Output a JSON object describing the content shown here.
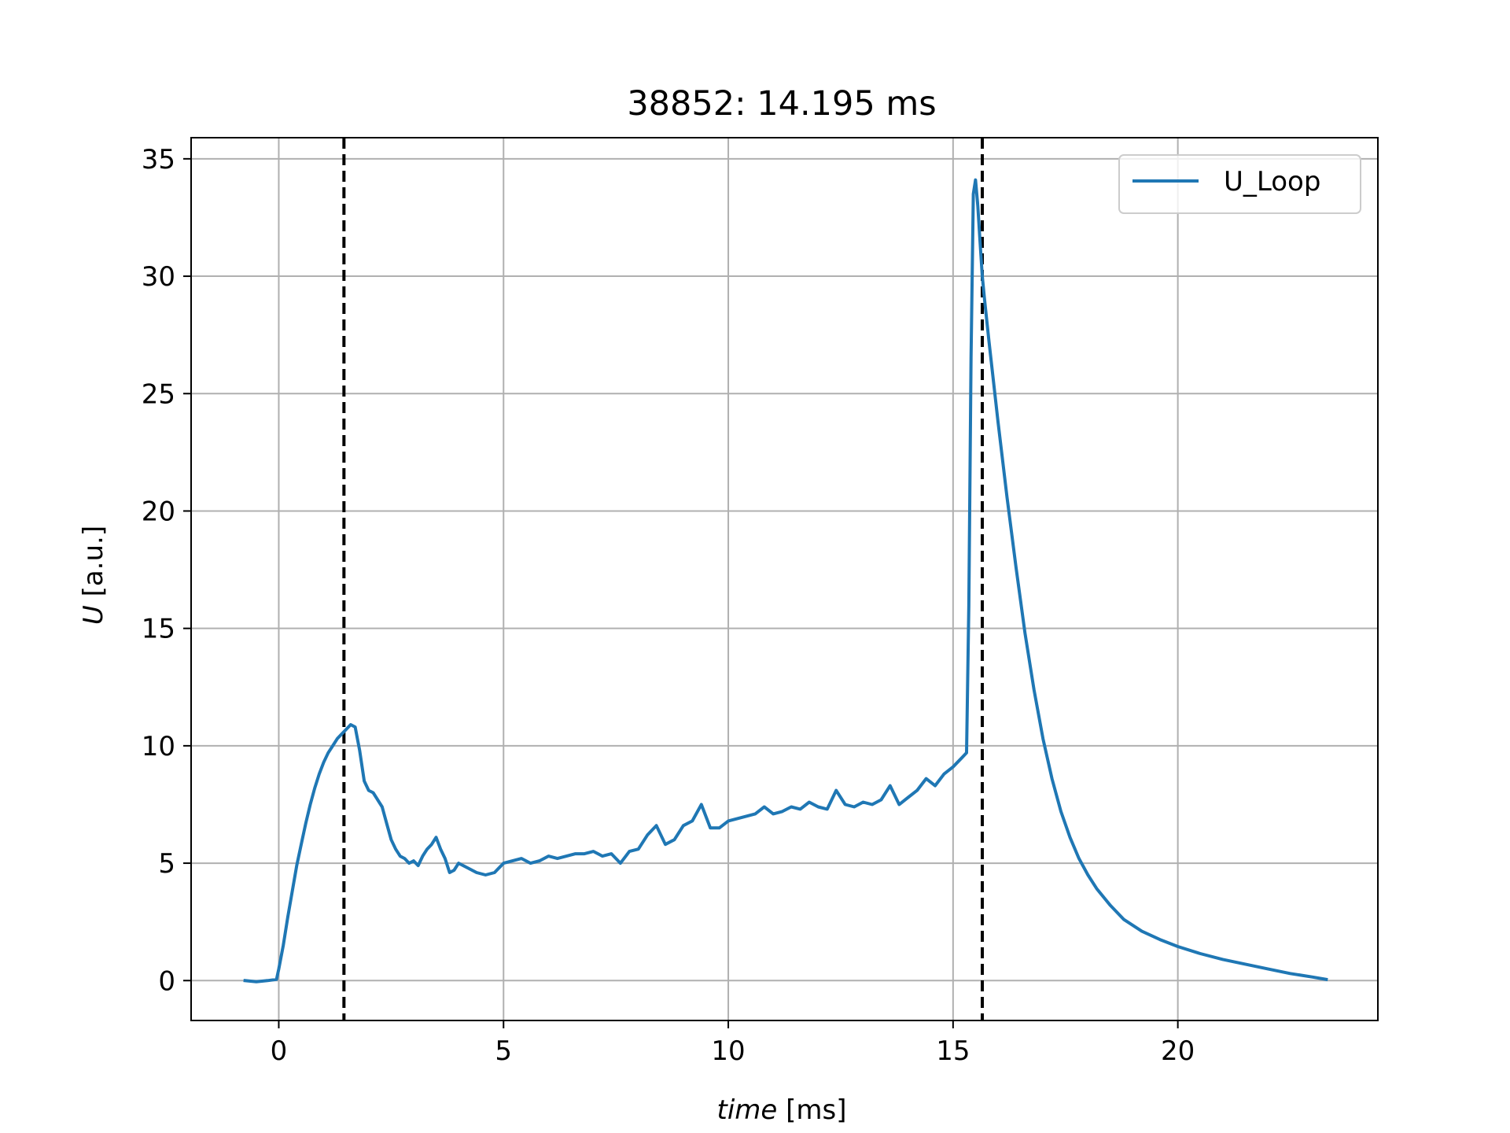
{
  "chart_data": {
    "type": "line",
    "title": "38852: 14.195 ms",
    "xlabel_italic": "time",
    "xlabel_unit": " [ms]",
    "ylabel_italic": "U",
    "ylabel_unit": " [a.u.]",
    "xlim": [
      -1.95,
      24.45
    ],
    "ylim": [
      -1.7,
      35.9
    ],
    "xticks": [
      0,
      5,
      10,
      15,
      20
    ],
    "xtick_labels": [
      "0",
      "5",
      "10",
      "15",
      "20"
    ],
    "yticks": [
      0,
      5,
      10,
      15,
      20,
      25,
      30,
      35
    ],
    "ytick_labels": [
      "0",
      "5",
      "10",
      "15",
      "20",
      "25",
      "30",
      "35"
    ],
    "grid": true,
    "legend_position": "top-right",
    "vertical_lines": [
      1.45,
      15.65
    ],
    "series": [
      {
        "name": "U_Loop",
        "color": "#1f77b4",
        "x": [
          -0.75,
          -0.5,
          -0.25,
          -0.05,
          0.0,
          0.1,
          0.2,
          0.3,
          0.4,
          0.5,
          0.6,
          0.7,
          0.8,
          0.9,
          1.0,
          1.1,
          1.2,
          1.3,
          1.4,
          1.5,
          1.6,
          1.7,
          1.8,
          1.9,
          2.0,
          2.1,
          2.2,
          2.3,
          2.4,
          2.5,
          2.6,
          2.7,
          2.8,
          2.9,
          3.0,
          3.1,
          3.2,
          3.3,
          3.4,
          3.5,
          3.6,
          3.7,
          3.8,
          3.9,
          4.0,
          4.2,
          4.4,
          4.6,
          4.8,
          5.0,
          5.2,
          5.4,
          5.6,
          5.8,
          6.0,
          6.2,
          6.4,
          6.6,
          6.8,
          7.0,
          7.2,
          7.4,
          7.6,
          7.8,
          8.0,
          8.2,
          8.4,
          8.6,
          8.8,
          9.0,
          9.2,
          9.4,
          9.6,
          9.8,
          10.0,
          10.2,
          10.4,
          10.6,
          10.8,
          11.0,
          11.2,
          11.4,
          11.6,
          11.8,
          12.0,
          12.2,
          12.4,
          12.6,
          12.8,
          13.0,
          13.2,
          13.4,
          13.6,
          13.8,
          14.0,
          14.2,
          14.4,
          14.6,
          14.8,
          15.0,
          15.2,
          15.3,
          15.35,
          15.4,
          15.45,
          15.5,
          15.55,
          15.6,
          15.65,
          15.7,
          15.8,
          16.0,
          16.2,
          16.4,
          16.6,
          16.8,
          17.0,
          17.2,
          17.4,
          17.6,
          17.8,
          18.0,
          18.2,
          18.5,
          18.8,
          19.2,
          19.6,
          20.0,
          20.5,
          21.0,
          21.5,
          22.0,
          22.5,
          23.0,
          23.3
        ],
        "y": [
          0.0,
          -0.05,
          0.0,
          0.05,
          0.5,
          1.5,
          2.7,
          3.8,
          4.9,
          5.8,
          6.7,
          7.5,
          8.2,
          8.8,
          9.3,
          9.7,
          10.0,
          10.3,
          10.5,
          10.7,
          10.9,
          10.8,
          9.8,
          8.5,
          8.1,
          8.0,
          7.7,
          7.4,
          6.7,
          6.0,
          5.6,
          5.3,
          5.2,
          5.0,
          5.1,
          4.9,
          5.3,
          5.6,
          5.8,
          6.1,
          5.6,
          5.2,
          4.6,
          4.7,
          5.0,
          4.8,
          4.6,
          4.5,
          4.6,
          5.0,
          5.1,
          5.2,
          5.0,
          5.1,
          5.3,
          5.2,
          5.3,
          5.4,
          5.4,
          5.5,
          5.3,
          5.4,
          5.0,
          5.5,
          5.6,
          6.2,
          6.6,
          5.8,
          6.0,
          6.6,
          6.8,
          7.5,
          6.5,
          6.5,
          6.8,
          6.9,
          7.0,
          7.1,
          7.4,
          7.1,
          7.2,
          7.4,
          7.3,
          7.6,
          7.4,
          7.3,
          8.1,
          7.5,
          7.4,
          7.6,
          7.5,
          7.7,
          8.3,
          7.5,
          7.8,
          8.1,
          8.6,
          8.3,
          8.8,
          9.1,
          9.5,
          9.7,
          16.0,
          26.5,
          33.5,
          34.1,
          33.0,
          31.5,
          30.0,
          29.0,
          27.2,
          23.8,
          20.6,
          17.6,
          14.8,
          12.4,
          10.3,
          8.6,
          7.2,
          6.1,
          5.2,
          4.5,
          3.9,
          3.2,
          2.6,
          2.1,
          1.75,
          1.45,
          1.15,
          0.9,
          0.7,
          0.5,
          0.3,
          0.15,
          0.05
        ]
      }
    ]
  }
}
